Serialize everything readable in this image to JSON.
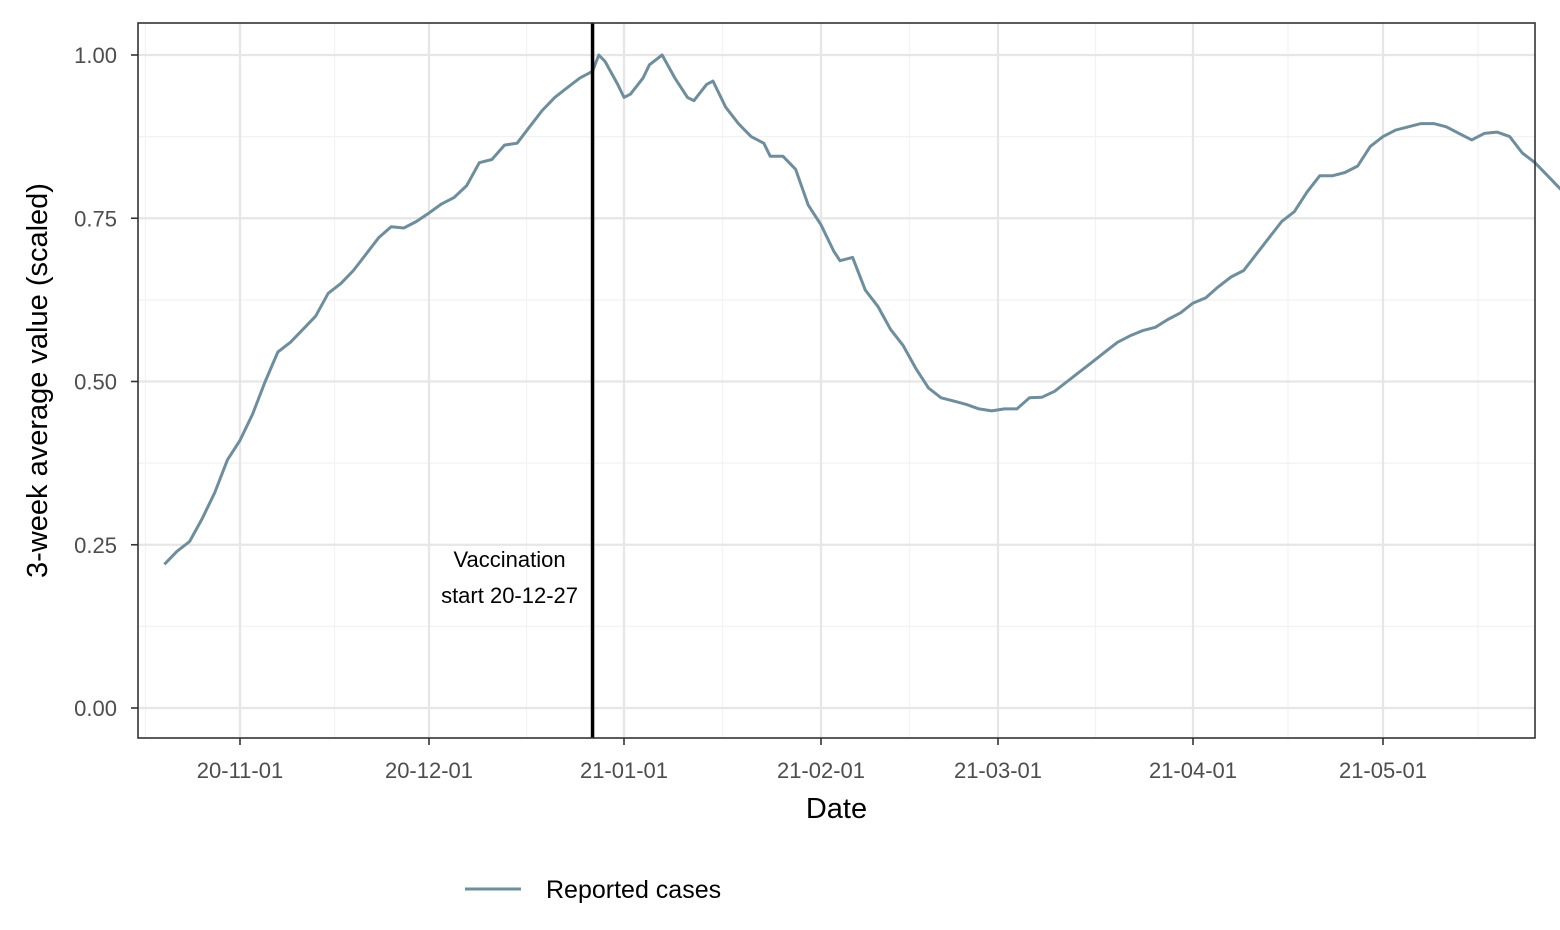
{
  "chart_data": {
    "type": "line",
    "title": "",
    "xlabel": "Date",
    "ylabel": "3-week average value (scaled)",
    "x_scale": "date",
    "xlim": [
      "2020-10-20",
      "2021-05-26"
    ],
    "ylim": [
      -0.05,
      1.05
    ],
    "x_ticks": [
      {
        "date": "2020-11-01",
        "label": "20-11-01"
      },
      {
        "date": "2020-12-01",
        "label": "20-12-01"
      },
      {
        "date": "2021-01-01",
        "label": "21-01-01"
      },
      {
        "date": "2021-02-01",
        "label": "21-02-01"
      },
      {
        "date": "2021-03-01",
        "label": "21-03-01"
      },
      {
        "date": "2021-04-01",
        "label": "21-04-01"
      },
      {
        "date": "2021-05-01",
        "label": "21-05-01"
      }
    ],
    "y_ticks": [
      {
        "value": 0,
        "label": "0.00"
      },
      {
        "value": 0.25,
        "label": "0.25"
      },
      {
        "value": 0.5,
        "label": "0.50"
      },
      {
        "value": 0.75,
        "label": "0.75"
      },
      {
        "value": 1,
        "label": "1.00"
      }
    ],
    "grid": true,
    "legend_position": "bottom",
    "vline": {
      "date": "2020-12-27",
      "label_lines": [
        "Vaccination",
        "start 20-12-27"
      ],
      "color": "#000000"
    },
    "series": [
      {
        "name": "Reported cases",
        "color": "#6f8d9b",
        "dash": "solid",
        "points": [
          [
            "2020-10-20",
            0.22
          ],
          [
            "2020-10-22",
            0.24
          ],
          [
            "2020-10-24",
            0.255
          ],
          [
            "2020-10-26",
            0.29
          ],
          [
            "2020-10-28",
            0.33
          ],
          [
            "2020-10-30",
            0.38
          ],
          [
            "2020-11-01",
            0.41
          ],
          [
            "2020-11-03",
            0.45
          ],
          [
            "2020-11-05",
            0.5
          ],
          [
            "2020-11-07",
            0.55
          ],
          [
            "2020-11-09",
            0.565
          ],
          [
            "2020-11-11",
            0.58
          ],
          [
            "2020-11-13",
            0.6
          ],
          [
            "2020-11-15",
            0.635
          ],
          [
            "2020-11-17",
            0.65
          ],
          [
            "2020-11-19",
            0.67
          ],
          [
            "2020-11-21",
            0.695
          ],
          [
            "2020-11-23",
            0.72
          ],
          [
            "2020-11-25",
            0.737
          ],
          [
            "2020-11-27",
            0.735
          ],
          [
            "2020-11-29",
            0.74
          ],
          [
            "2020-12-01",
            0.755
          ],
          [
            "2020-12-03",
            0.77
          ],
          [
            "2020-12-05",
            0.78
          ],
          [
            "2020-12-07",
            0.8
          ],
          [
            "2020-12-09",
            0.835
          ],
          [
            "2020-12-11",
            0.845
          ],
          [
            "2020-12-13",
            0.865
          ],
          [
            "2020-12-15",
            0.865
          ],
          [
            "2020-12-17",
            0.885
          ],
          [
            "2020-12-19",
            0.915
          ],
          [
            "2020-12-21",
            0.93
          ],
          [
            "2020-12-23",
            0.945
          ],
          [
            "2020-12-25",
            0.96
          ],
          [
            "2020-12-27",
            0.97
          ],
          [
            "2020-12-28",
            1.0
          ],
          [
            "2020-12-30",
            0.96
          ],
          [
            "2021-01-01",
            0.935
          ],
          [
            "2021-01-03",
            0.96
          ],
          [
            "2021-01-05",
            0.985
          ],
          [
            "2021-01-06",
            1.0
          ],
          [
            "2021-01-08",
            0.955
          ],
          [
            "2020-12-27",
            0.96
          ]
        ]
      }
    ]
  }
}
